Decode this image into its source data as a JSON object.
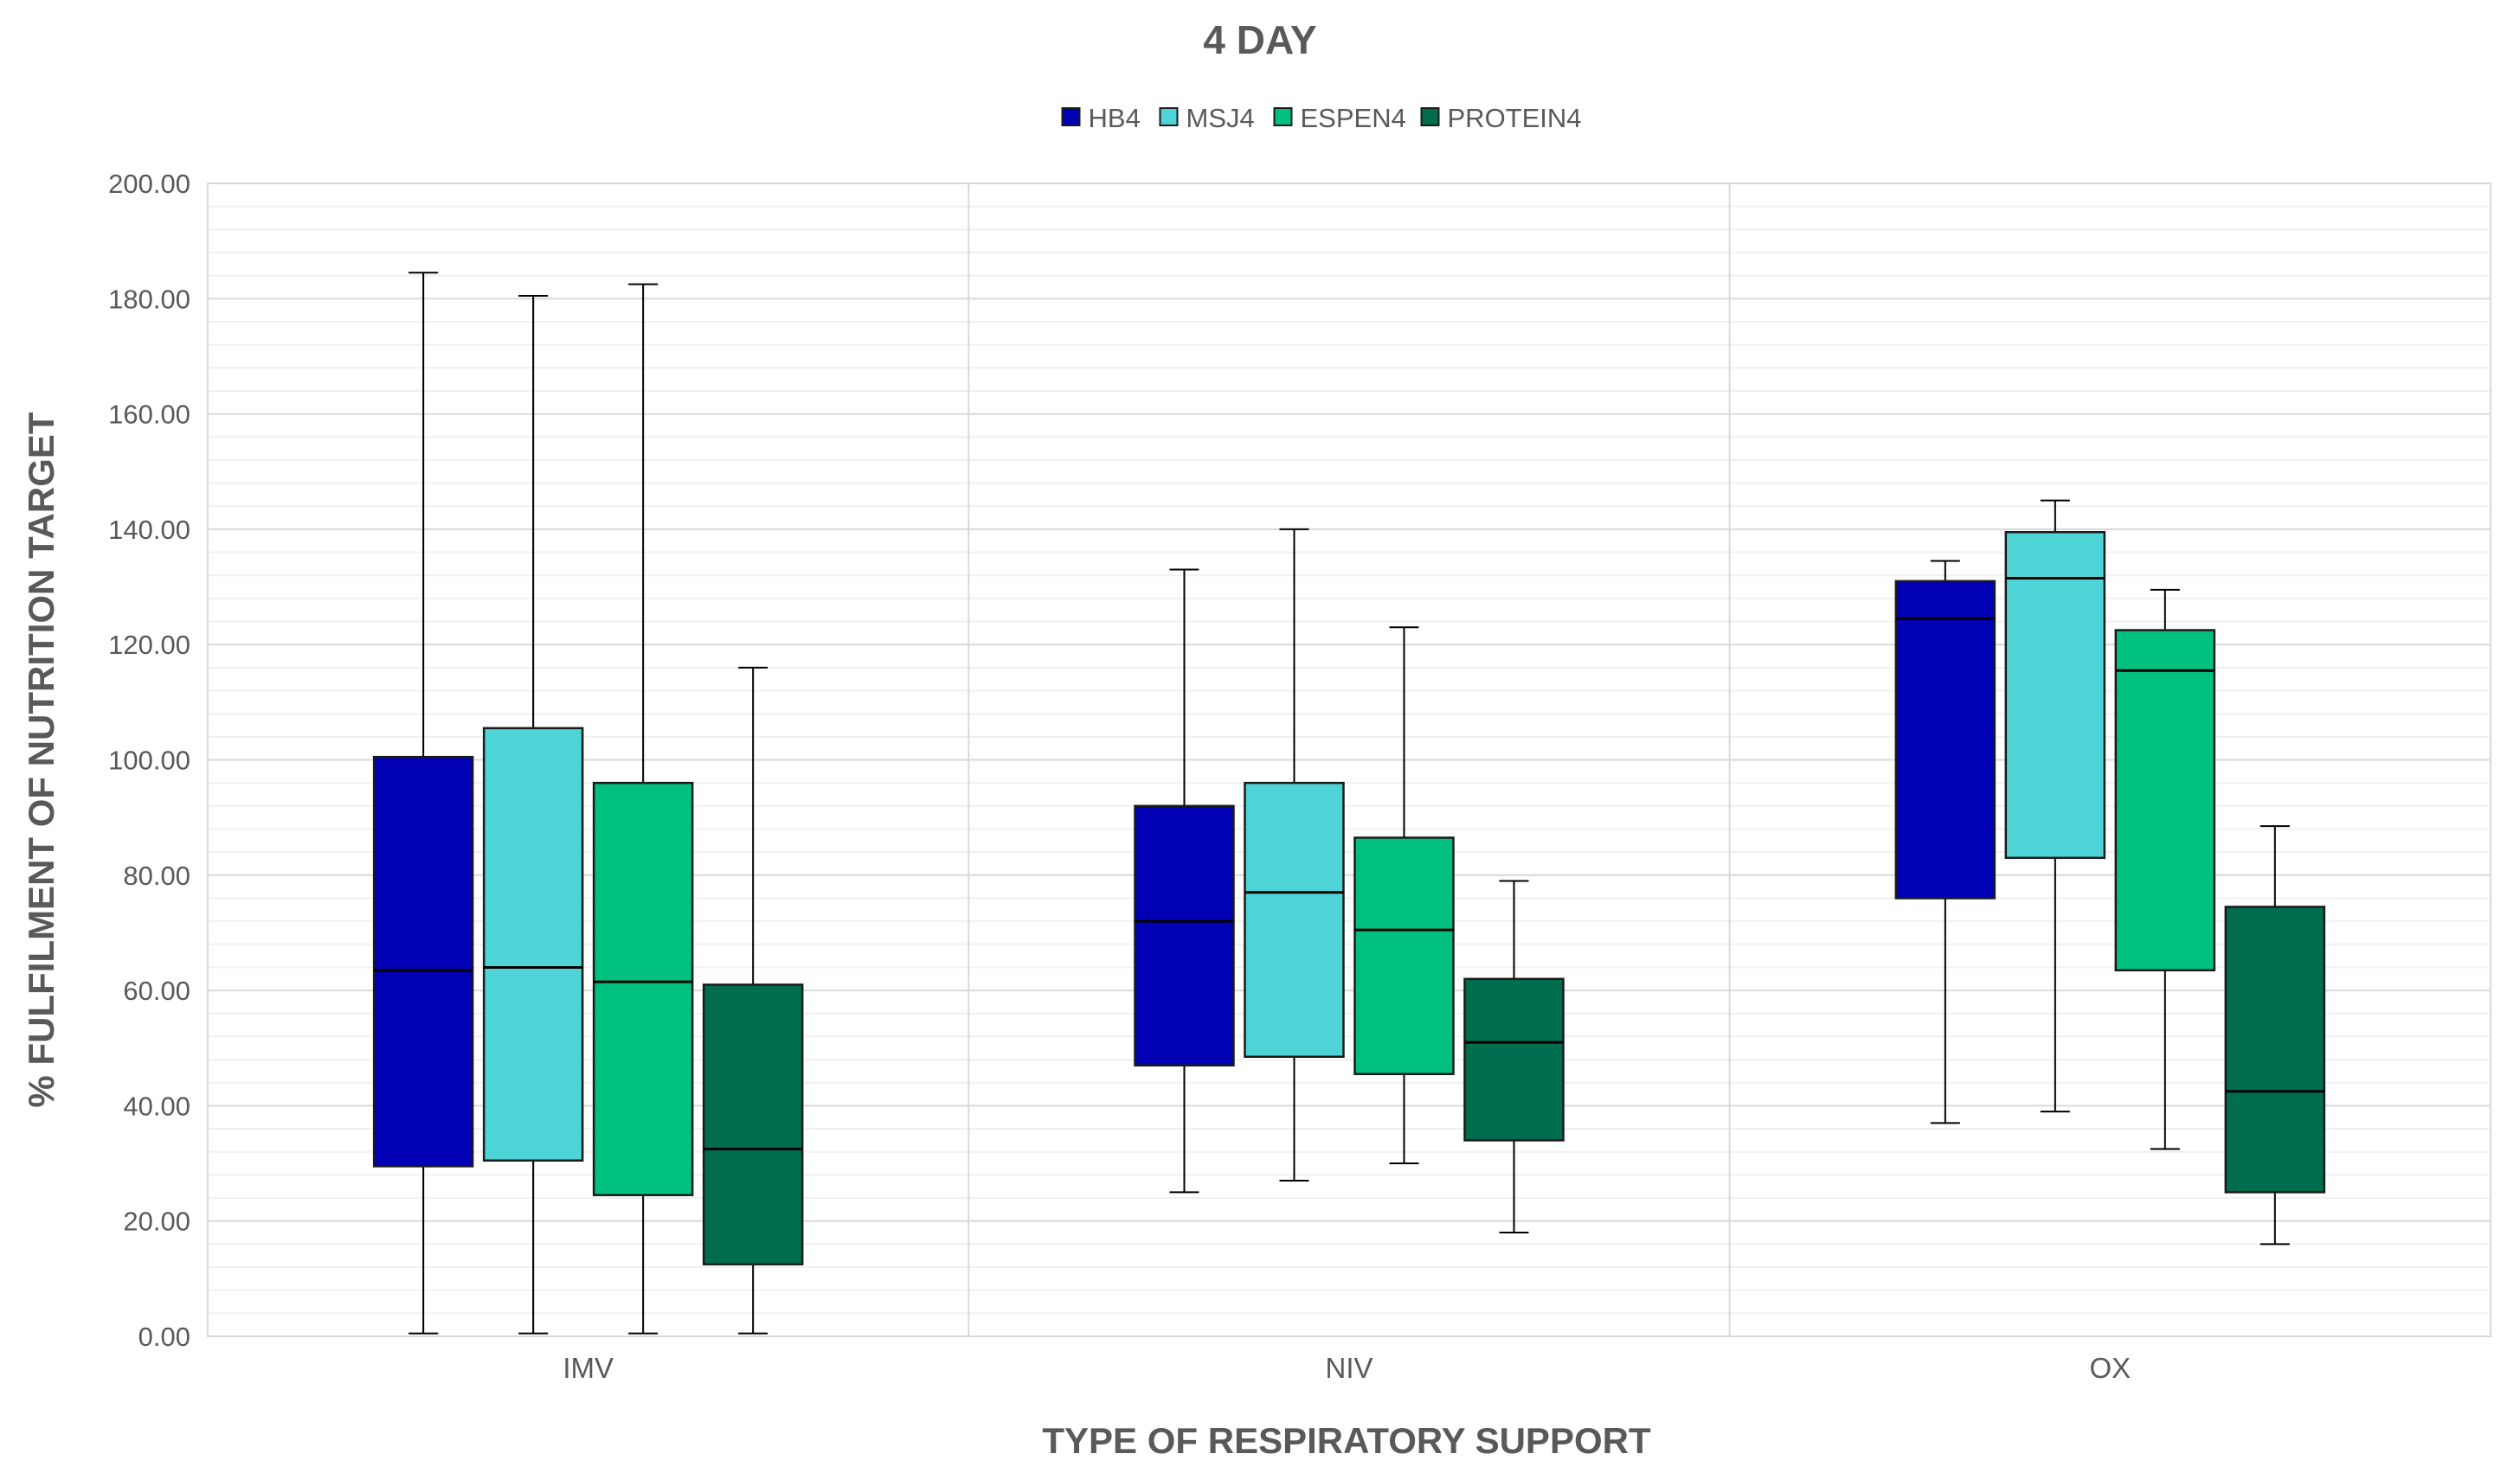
{
  "chart_data": {
    "type": "box",
    "title": "4 DAY",
    "xlabel": "TYPE OF RESPIRATORY SUPPORT",
    "ylabel": "% FULFILMENT OF NUTRITION TARGET",
    "ylim": [
      0,
      200
    ],
    "yticks": [
      "0.00",
      "20.00",
      "40.00",
      "60.00",
      "80.00",
      "100.00",
      "120.00",
      "140.00",
      "160.00",
      "180.00",
      "200.00"
    ],
    "minor_gridline_step": 4,
    "legend_position": "top",
    "categories": [
      "IMV",
      "NIV",
      "OX"
    ],
    "series": [
      {
        "name": "HB4",
        "color": "#0000B4",
        "boxes": [
          {
            "min": 0.5,
            "q1": 29.5,
            "median": 63.5,
            "q3": 100.5,
            "max": 184.5
          },
          {
            "min": 25.0,
            "q1": 47.0,
            "median": 72.0,
            "q3": 92.0,
            "max": 133.0
          },
          {
            "min": 37.0,
            "q1": 76.0,
            "median": 124.5,
            "q3": 131.0,
            "max": 134.5
          }
        ]
      },
      {
        "name": "MSJ4",
        "color": "#4ED4D6",
        "boxes": [
          {
            "min": 0.5,
            "q1": 30.5,
            "median": 64.0,
            "q3": 105.5,
            "max": 180.5
          },
          {
            "min": 27.0,
            "q1": 48.5,
            "median": 77.0,
            "q3": 96.0,
            "max": 140.0
          },
          {
            "min": 39.0,
            "q1": 83.0,
            "median": 131.5,
            "q3": 139.5,
            "max": 145.0
          }
        ]
      },
      {
        "name": "ESPEN4",
        "color": "#00C080",
        "boxes": [
          {
            "min": 0.5,
            "q1": 24.5,
            "median": 61.5,
            "q3": 96.0,
            "max": 182.5
          },
          {
            "min": 30.0,
            "q1": 45.5,
            "median": 70.5,
            "q3": 86.5,
            "max": 123.0
          },
          {
            "min": 32.5,
            "q1": 63.5,
            "median": 115.5,
            "q3": 122.5,
            "max": 129.5
          }
        ]
      },
      {
        "name": "PROTEIN4",
        "color": "#006E4E",
        "boxes": [
          {
            "min": 0.5,
            "q1": 12.5,
            "median": 32.5,
            "q3": 61.0,
            "max": 116.0
          },
          {
            "min": 18.0,
            "q1": 34.0,
            "median": 51.0,
            "q3": 62.0,
            "max": 79.0
          },
          {
            "min": 16.0,
            "q1": 25.0,
            "median": 42.5,
            "q3": 74.5,
            "max": 88.5
          }
        ]
      }
    ]
  }
}
